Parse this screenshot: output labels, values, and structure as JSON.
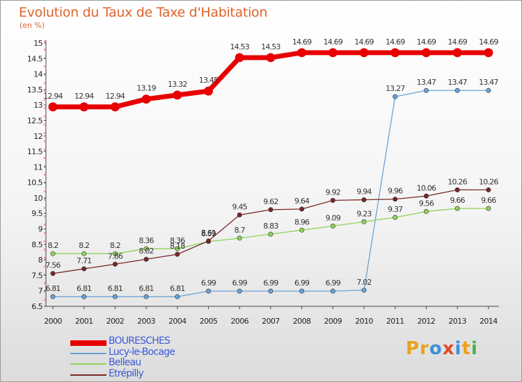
{
  "title": "Evolution du Taux de Taxe d'Habitation",
  "unit": "(en %)",
  "logo": {
    "text": "Proxiti",
    "colors": [
      "#e8a21c",
      "#e8a21c",
      "#3f8fd8",
      "#e04a2a",
      "#3f8fd8",
      "#e8a21c",
      "#4caf50"
    ]
  },
  "chart_data": {
    "type": "line",
    "x": [
      2000,
      2001,
      2002,
      2003,
      2004,
      2005,
      2006,
      2007,
      2008,
      2009,
      2010,
      2011,
      2012,
      2013,
      2014
    ],
    "ylim": [
      6.5,
      15
    ],
    "yticks": [
      6.5,
      7,
      7.5,
      8,
      8.5,
      9,
      9.5,
      10,
      10.5,
      11,
      11.5,
      12,
      12.5,
      13,
      13.5,
      14,
      14.5,
      15
    ],
    "grid": false,
    "legend_position": "bottom-left",
    "series": [
      {
        "name": "BOURESCHES",
        "color": "#e80000",
        "values": [
          12.94,
          12.94,
          12.94,
          13.19,
          13.32,
          13.45,
          14.53,
          14.53,
          14.69,
          14.69,
          14.69,
          14.69,
          14.69,
          14.69,
          14.69
        ]
      },
      {
        "name": "Lucy-le-Bocage",
        "color": "#6aa3d5",
        "values": [
          6.81,
          6.81,
          6.81,
          6.81,
          6.81,
          6.99,
          6.99,
          6.99,
          6.99,
          6.99,
          7.02,
          13.27,
          13.47,
          13.47,
          13.47
        ]
      },
      {
        "name": "Belleau",
        "color": "#8fd45a",
        "values": [
          8.2,
          8.2,
          8.2,
          8.36,
          8.36,
          8.59,
          8.7,
          8.83,
          8.96,
          9.09,
          9.23,
          9.37,
          9.56,
          9.66,
          9.66
        ]
      },
      {
        "name": "Etrépilly",
        "color": "#7a2626",
        "values": [
          7.56,
          7.71,
          7.86,
          8.02,
          8.18,
          8.61,
          9.45,
          9.62,
          9.64,
          9.92,
          9.94,
          9.96,
          10.06,
          10.26,
          10.26
        ]
      }
    ]
  }
}
